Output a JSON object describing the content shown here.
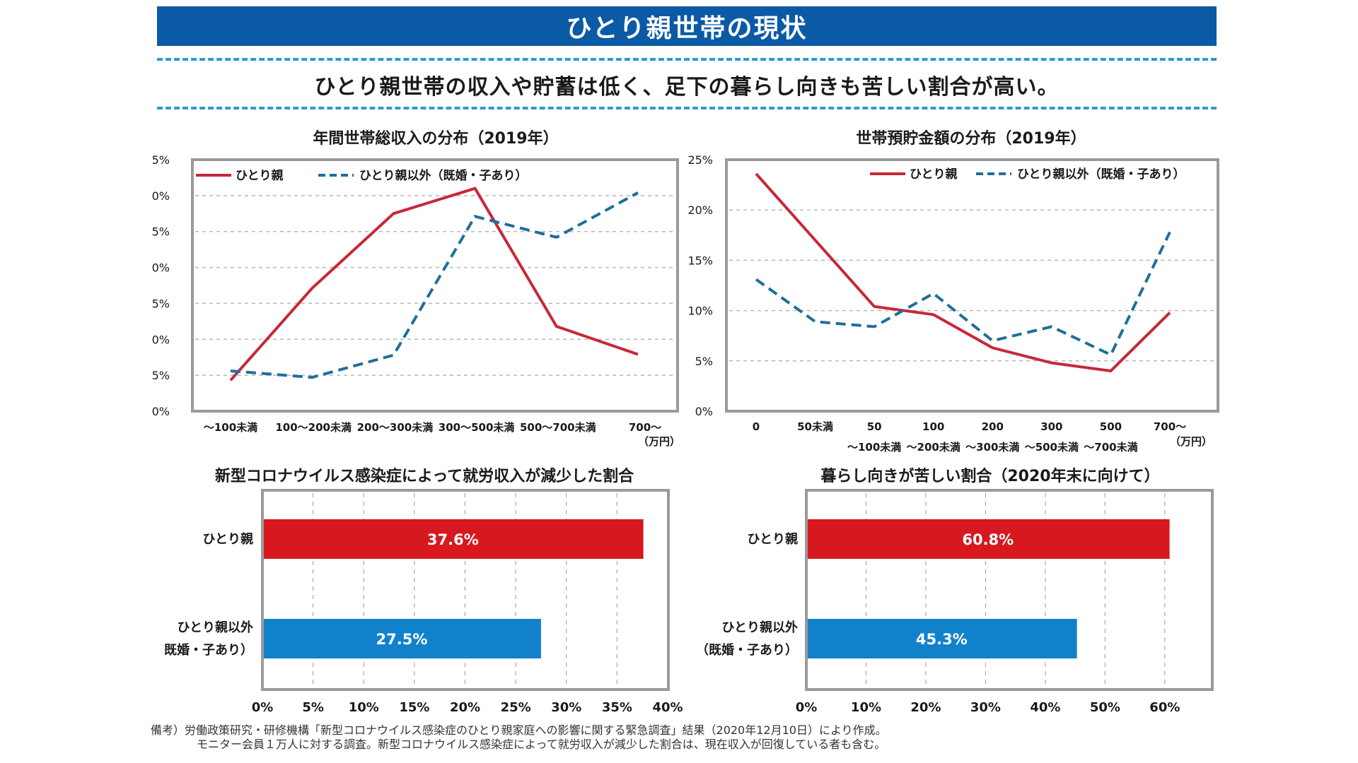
{
  "header": {
    "title": "ひとり親世帯の現状",
    "subtitle": "ひとり親世帯の収入や貯蓄は低く、足下の暮らし向きも苦しい割合が高い。",
    "accent_color": "#0b5aa6",
    "dash_color": "#2d9bd2"
  },
  "colors": {
    "single_parent": "#c7283a",
    "other": "#1f6f99",
    "bar_red": "#d7181f",
    "bar_blue": "#1281cc",
    "frame": "#9a9a9a",
    "grid": "#b8b8b8"
  },
  "chart_data": [
    {
      "type": "line",
      "title": "年間世帯総収入の分布（2019年）",
      "categories": [
        "～100未満",
        "100～200未満",
        "200～300未満",
        "300～500未満",
        "500～700未満",
        "700～"
      ],
      "x_unit": "（万円）",
      "series": [
        {
          "name": "ひとり親",
          "style": "solid",
          "values": [
            4.3,
            17.1,
            27.5,
            31.0,
            11.8,
            7.9
          ]
        },
        {
          "name": "ひとり親以外（既婚・子あり）",
          "style": "dashed",
          "values": [
            5.6,
            4.7,
            7.8,
            27.1,
            24.2,
            30.4
          ]
        }
      ],
      "yticks": [
        "0%",
        "5%",
        "0%",
        "5%",
        "0%",
        "5%",
        "0%",
        "5%"
      ],
      "yticks_note": "leading digits cropped in screenshot; actual 0%–35%",
      "ylim": [
        0,
        35
      ],
      "ytick_step": 5,
      "xlabel": "",
      "ylabel": "",
      "grid": true,
      "legend": "top-left"
    },
    {
      "type": "line",
      "title": "世帯預貯金額の分布（2019年）",
      "categories": [
        "0",
        "50未満",
        "50～100未満",
        "100～200未満",
        "200～300未満",
        "300～500未満",
        "500～700未満",
        "700～"
      ],
      "category_rows": [
        [
          "0",
          "50未満",
          "50",
          "100",
          "200",
          "300",
          "500",
          "700～"
        ],
        [
          "",
          "",
          "～100未満",
          "～200未満",
          "～300未満",
          "～500未満",
          "～700未満",
          ""
        ]
      ],
      "x_unit": "（万円）",
      "series": [
        {
          "name": "ひとり親",
          "style": "solid",
          "values": [
            23.6,
            17.0,
            10.4,
            9.6,
            6.3,
            4.8,
            4.0,
            9.8
          ]
        },
        {
          "name": "ひとり親以外（既婚・子あり）",
          "style": "dashed",
          "values": [
            13.1,
            8.9,
            8.4,
            11.7,
            7.0,
            8.4,
            5.6,
            17.8
          ]
        }
      ],
      "yticks": [
        "0%",
        "5%",
        "10%",
        "15%",
        "20%",
        "25%"
      ],
      "ylim": [
        0,
        25
      ],
      "ytick_step": 5,
      "xlabel": "",
      "ylabel": "",
      "grid": true,
      "legend": "top-right"
    },
    {
      "type": "bar",
      "orientation": "horizontal",
      "title": "新型コロナウイルス感染症によって就労収入が減少した割合",
      "categories": [
        "ひとり親",
        "ひとり親以外\n（既婚・子あり）"
      ],
      "category_lines": [
        [
          "ひとり親"
        ],
        [
          "ひとり親以外",
          "既婚・子あり）"
        ]
      ],
      "values": [
        37.6,
        27.5
      ],
      "data_labels": [
        "37.6%",
        "27.5%"
      ],
      "xticks": [
        "0%",
        "5%",
        "10%",
        "15%",
        "20%",
        "25%",
        "30%",
        "35%",
        "40%"
      ],
      "xlim": [
        0,
        40
      ],
      "xtick_step": 5,
      "grid": true
    },
    {
      "type": "bar",
      "orientation": "horizontal",
      "title": "暮らし向きが苦しい割合（2020年末に向けて）",
      "categories": [
        "ひとり親",
        "ひとり親以外（既婚・子あり）"
      ],
      "category_lines": [
        [
          "ひとり親"
        ],
        [
          "ひとり親以外",
          "（既婚・子あり）"
        ]
      ],
      "values": [
        60.8,
        45.3
      ],
      "data_labels": [
        "60.8%",
        "45.3%"
      ],
      "xticks": [
        "0%",
        "10%",
        "20%",
        "30%",
        "40%",
        "50%",
        "60%"
      ],
      "xlim": [
        0,
        65
      ],
      "xtick_step": 10,
      "grid": true
    }
  ],
  "footnote": {
    "line1": "備考）労働政策研究・研修機構「新型コロナウイルス感染症のひとり親家庭への影響に関する緊急調査」結果（2020年12月10日）により作成。",
    "line2": "モニター会員１万人に対する調査。新型コロナウイルス感染症によって就労収入が減少した割合は、現在収入が回復している者も含む。"
  }
}
